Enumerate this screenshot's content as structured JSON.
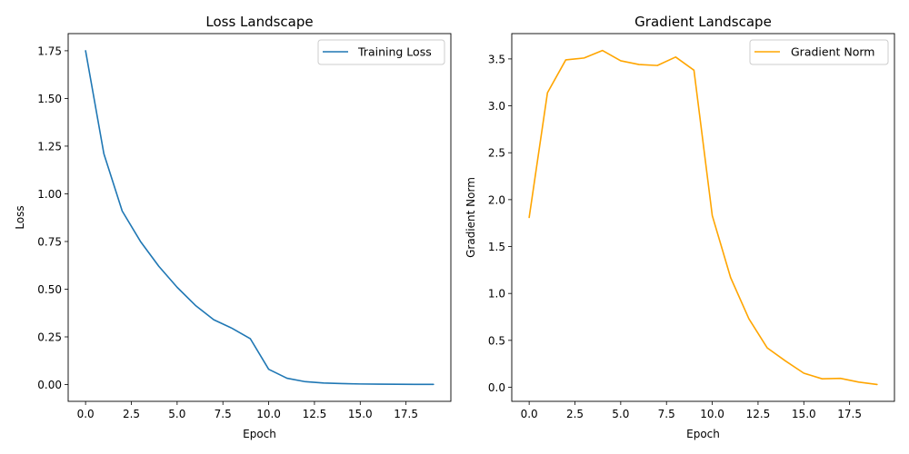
{
  "chart_data": [
    {
      "type": "line",
      "title": "Loss Landscape",
      "xlabel": "Epoch",
      "ylabel": "Loss",
      "xlim": [
        -0.95,
        19.95
      ],
      "ylim": [
        -0.088,
        1.84
      ],
      "xticks": [
        0.0,
        2.5,
        5.0,
        7.5,
        10.0,
        12.5,
        15.0,
        17.5
      ],
      "xtick_labels": [
        "0.0",
        "2.5",
        "5.0",
        "7.5",
        "10.0",
        "12.5",
        "15.0",
        "17.5"
      ],
      "yticks": [
        0.0,
        0.25,
        0.5,
        0.75,
        1.0,
        1.25,
        1.5,
        1.75
      ],
      "ytick_labels": [
        "0.00",
        "0.25",
        "0.50",
        "0.75",
        "1.00",
        "1.25",
        "1.50",
        "1.75"
      ],
      "grid": false,
      "legend_position": "top-right",
      "series": [
        {
          "name": "Training Loss",
          "color": "#1f77b4",
          "x": [
            0,
            1,
            2,
            3,
            4,
            5,
            6,
            7,
            8,
            9,
            10,
            11,
            12,
            13,
            14,
            15,
            16,
            17,
            18,
            19
          ],
          "y": [
            1.75,
            1.21,
            0.91,
            0.75,
            0.62,
            0.51,
            0.415,
            0.34,
            0.295,
            0.24,
            0.08,
            0.033,
            0.015,
            0.008,
            0.005,
            0.003,
            0.002,
            0.0015,
            0.001,
            0.001
          ]
        }
      ]
    },
    {
      "type": "line",
      "title": "Gradient Landscape",
      "xlabel": "Epoch",
      "ylabel": "Gradient Norm",
      "xlim": [
        -0.95,
        19.95
      ],
      "ylim": [
        -0.15,
        3.77
      ],
      "xticks": [
        0.0,
        2.5,
        5.0,
        7.5,
        10.0,
        12.5,
        15.0,
        17.5
      ],
      "xtick_labels": [
        "0.0",
        "2.5",
        "5.0",
        "7.5",
        "10.0",
        "12.5",
        "15.0",
        "17.5"
      ],
      "yticks": [
        0.0,
        0.5,
        1.0,
        1.5,
        2.0,
        2.5,
        3.0,
        3.5
      ],
      "ytick_labels": [
        "0.0",
        "0.5",
        "1.0",
        "1.5",
        "2.0",
        "2.5",
        "3.0",
        "3.5"
      ],
      "grid": false,
      "legend_position": "top-right",
      "series": [
        {
          "name": "Gradient Norm",
          "color": "#ffa500",
          "x": [
            0,
            1,
            2,
            3,
            4,
            5,
            6,
            7,
            8,
            9,
            10,
            11,
            12,
            13,
            14,
            15,
            16,
            17,
            18,
            19
          ],
          "y": [
            1.81,
            3.14,
            3.49,
            3.51,
            3.59,
            3.48,
            3.44,
            3.43,
            3.52,
            3.38,
            1.83,
            1.17,
            0.73,
            0.42,
            0.28,
            0.15,
            0.09,
            0.095,
            0.055,
            0.03
          ]
        }
      ]
    }
  ]
}
